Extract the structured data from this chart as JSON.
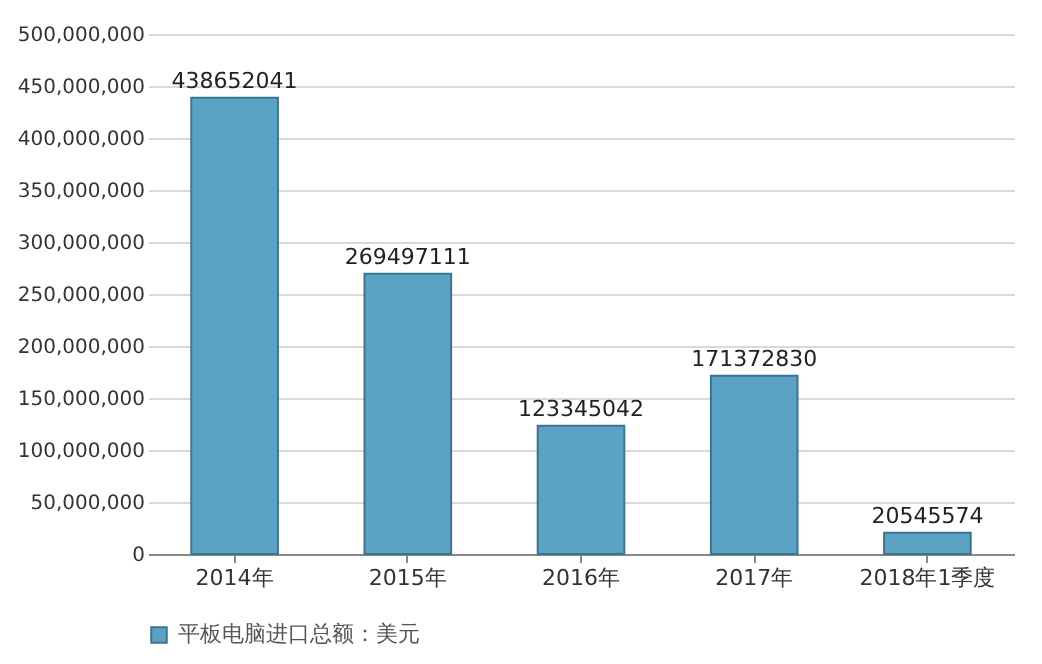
{
  "chart_data": {
    "type": "bar",
    "categories": [
      "2014年",
      "2015年",
      "2016年",
      "2017年",
      "2018年1季度"
    ],
    "series": [
      {
        "name": "平板电脑进口总额：美元",
        "color": "#5ba3c4",
        "values": [
          438652041,
          269497111,
          123345042,
          171372830,
          20545574
        ]
      }
    ],
    "ylim": [
      0,
      500000000
    ],
    "yticks": [
      0,
      {
        "value": 50000000,
        "label": "50,000,000"
      },
      {
        "value": 100000000,
        "label": "100,000,000"
      },
      {
        "value": 150000000,
        "label": "150,000,000"
      },
      {
        "value": 200000000,
        "label": "200,000,000"
      },
      {
        "value": 250000000,
        "label": "250,000,000"
      },
      {
        "value": 300000000,
        "label": "300,000,000"
      },
      {
        "value": 350000000,
        "label": "350,000,000"
      },
      {
        "value": 400000000,
        "label": "400,000,000"
      },
      {
        "value": 450000000,
        "label": "450,000,000"
      },
      {
        "value": 500000000,
        "label": "500,000,000"
      }
    ],
    "grid": "y",
    "legend": "bottom",
    "data_labels": true
  }
}
